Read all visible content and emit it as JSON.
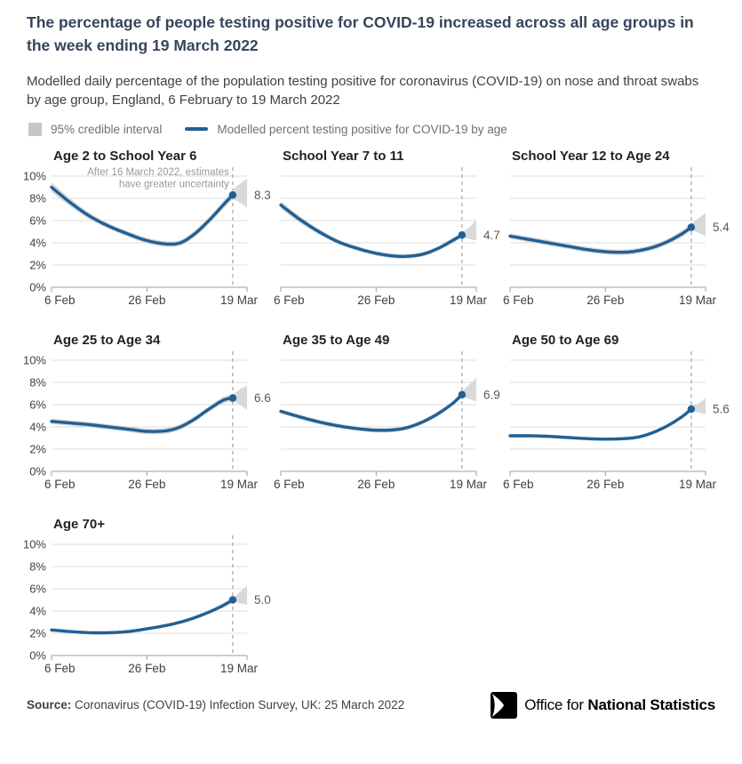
{
  "header": {
    "title": "The percentage of people testing positive for COVID-19 increased across all age groups in the week ending 19 March 2022",
    "subtitle": "Modelled daily percentage of the population testing positive for coronavirus (COVID-19) on nose and throat swabs by age group, England, 6 February to 19 March 2022"
  },
  "legend": {
    "interval_label": "95% credible interval",
    "line_label": "Modelled percent testing positive for COVID-19 by age"
  },
  "colors": {
    "line": "#206095",
    "band": "#d9d9d9",
    "legend_swatch": "#c6c6c6",
    "grid": "#dcdcdc",
    "axis": "#9e9e9e",
    "dash": "#ababab",
    "tick_text": "#414042",
    "value_text": "#595959",
    "annotation_text": "#9a9a9a",
    "title_text": "#36455c"
  },
  "chart_data": {
    "type": "line",
    "x_max": 41,
    "dashed_day": 38,
    "x_ticks": [
      {
        "label": "6 Feb",
        "day": 0
      },
      {
        "label": "26 Feb",
        "day": 20
      },
      {
        "label": "19 Mar",
        "day": 41
      }
    ],
    "y_axis": {
      "min": 0,
      "max": 10,
      "step": 2,
      "suffix": "%"
    },
    "grid": true,
    "legend_position": "top",
    "annotation": {
      "lines": [
        "After 16 March 2022, estimates",
        "have greater uncertainty"
      ]
    },
    "charts": [
      {
        "title": "Age 2 to School Year 6",
        "value_label": "8.3",
        "show_y_labels": true,
        "show_annotation": true,
        "line": [
          [
            0,
            9.0
          ],
          [
            4,
            7.6
          ],
          [
            8,
            6.4
          ],
          [
            12,
            5.5
          ],
          [
            16,
            4.8
          ],
          [
            20,
            4.2
          ],
          [
            24,
            3.9
          ],
          [
            27,
            4.0
          ],
          [
            30,
            4.8
          ],
          [
            33,
            6.0
          ],
          [
            36,
            7.4
          ],
          [
            38,
            8.3
          ]
        ],
        "band": [
          [
            0,
            8.55,
            9.45
          ],
          [
            4,
            7.25,
            7.95
          ],
          [
            8,
            6.1,
            6.7
          ],
          [
            12,
            5.25,
            5.75
          ],
          [
            16,
            4.55,
            5.05
          ],
          [
            20,
            3.95,
            4.45
          ],
          [
            24,
            3.65,
            4.15
          ],
          [
            27,
            3.75,
            4.25
          ],
          [
            30,
            4.5,
            5.1
          ],
          [
            33,
            5.7,
            6.3
          ],
          [
            36,
            7.05,
            7.75
          ],
          [
            38,
            7.85,
            8.75
          ],
          [
            39.5,
            7.6,
            9.3
          ],
          [
            41,
            7.2,
            9.8
          ]
        ]
      },
      {
        "title": "School Year 7 to 11",
        "value_label": "4.7",
        "show_y_labels": false,
        "show_annotation": false,
        "line": [
          [
            0,
            7.4
          ],
          [
            4,
            6.1
          ],
          [
            8,
            5.0
          ],
          [
            12,
            4.1
          ],
          [
            16,
            3.5
          ],
          [
            20,
            3.05
          ],
          [
            24,
            2.8
          ],
          [
            27,
            2.8
          ],
          [
            30,
            3.0
          ],
          [
            33,
            3.5
          ],
          [
            36,
            4.2
          ],
          [
            38,
            4.7
          ]
        ],
        "band": [
          [
            0,
            7.05,
            7.75
          ],
          [
            4,
            5.8,
            6.4
          ],
          [
            8,
            4.75,
            5.25
          ],
          [
            12,
            3.9,
            4.3
          ],
          [
            16,
            3.3,
            3.7
          ],
          [
            20,
            2.85,
            3.25
          ],
          [
            24,
            2.6,
            3.0
          ],
          [
            27,
            2.6,
            3.0
          ],
          [
            30,
            2.8,
            3.2
          ],
          [
            33,
            3.3,
            3.7
          ],
          [
            36,
            3.95,
            4.45
          ],
          [
            38,
            4.45,
            4.95
          ],
          [
            39.5,
            4.35,
            5.4
          ],
          [
            41,
            4.2,
            6.1
          ]
        ]
      },
      {
        "title": "School Year 12 to Age 24",
        "value_label": "5.4",
        "show_y_labels": false,
        "show_annotation": false,
        "line": [
          [
            0,
            4.6
          ],
          [
            4,
            4.3
          ],
          [
            8,
            4.0
          ],
          [
            12,
            3.7
          ],
          [
            16,
            3.4
          ],
          [
            20,
            3.2
          ],
          [
            24,
            3.15
          ],
          [
            27,
            3.3
          ],
          [
            30,
            3.6
          ],
          [
            33,
            4.1
          ],
          [
            36,
            4.8
          ],
          [
            38,
            5.4
          ]
        ],
        "band": [
          [
            0,
            4.35,
            4.85
          ],
          [
            4,
            4.05,
            4.55
          ],
          [
            8,
            3.75,
            4.25
          ],
          [
            12,
            3.45,
            3.95
          ],
          [
            16,
            3.15,
            3.65
          ],
          [
            20,
            2.95,
            3.45
          ],
          [
            24,
            2.9,
            3.4
          ],
          [
            27,
            3.05,
            3.55
          ],
          [
            30,
            3.35,
            3.85
          ],
          [
            33,
            3.85,
            4.35
          ],
          [
            36,
            4.5,
            5.1
          ],
          [
            38,
            5.05,
            5.75
          ],
          [
            39.5,
            4.9,
            6.2
          ],
          [
            41,
            4.6,
            6.7
          ]
        ]
      },
      {
        "title": "Age 25 to Age 34",
        "value_label": "6.6",
        "show_y_labels": true,
        "show_annotation": false,
        "line": [
          [
            0,
            4.5
          ],
          [
            4,
            4.35
          ],
          [
            8,
            4.2
          ],
          [
            12,
            4.0
          ],
          [
            16,
            3.8
          ],
          [
            20,
            3.6
          ],
          [
            24,
            3.65
          ],
          [
            27,
            4.0
          ],
          [
            30,
            4.7
          ],
          [
            33,
            5.6
          ],
          [
            36,
            6.4
          ],
          [
            38,
            6.6
          ]
        ],
        "band": [
          [
            0,
            4.25,
            4.75
          ],
          [
            4,
            4.1,
            4.6
          ],
          [
            8,
            3.95,
            4.45
          ],
          [
            12,
            3.75,
            4.25
          ],
          [
            16,
            3.55,
            4.05
          ],
          [
            20,
            3.35,
            3.85
          ],
          [
            24,
            3.4,
            3.9
          ],
          [
            27,
            3.75,
            4.25
          ],
          [
            30,
            4.45,
            4.95
          ],
          [
            33,
            5.35,
            5.85
          ],
          [
            36,
            6.1,
            6.7
          ],
          [
            38,
            6.25,
            6.95
          ],
          [
            39.5,
            6.0,
            7.4
          ],
          [
            41,
            5.5,
            7.7
          ]
        ]
      },
      {
        "title": "Age 35 to Age 49",
        "value_label": "6.9",
        "show_y_labels": false,
        "show_annotation": false,
        "line": [
          [
            0,
            5.4
          ],
          [
            4,
            4.9
          ],
          [
            8,
            4.45
          ],
          [
            12,
            4.1
          ],
          [
            16,
            3.85
          ],
          [
            20,
            3.7
          ],
          [
            24,
            3.75
          ],
          [
            27,
            4.0
          ],
          [
            30,
            4.5
          ],
          [
            33,
            5.2
          ],
          [
            36,
            6.1
          ],
          [
            38,
            6.9
          ]
        ],
        "band": [
          [
            0,
            5.2,
            5.6
          ],
          [
            4,
            4.7,
            5.1
          ],
          [
            8,
            4.25,
            4.65
          ],
          [
            12,
            3.9,
            4.3
          ],
          [
            16,
            3.65,
            4.05
          ],
          [
            20,
            3.5,
            3.9
          ],
          [
            24,
            3.55,
            3.95
          ],
          [
            27,
            3.8,
            4.2
          ],
          [
            30,
            4.3,
            4.7
          ],
          [
            33,
            5.0,
            5.4
          ],
          [
            36,
            5.9,
            6.3
          ],
          [
            38,
            6.6,
            7.2
          ],
          [
            39.5,
            6.5,
            7.8
          ],
          [
            41,
            6.3,
            8.4
          ]
        ]
      },
      {
        "title": "Age 50 to Age 69",
        "value_label": "5.6",
        "show_y_labels": false,
        "show_annotation": false,
        "line": [
          [
            0,
            3.2
          ],
          [
            4,
            3.2
          ],
          [
            8,
            3.15
          ],
          [
            12,
            3.05
          ],
          [
            16,
            2.95
          ],
          [
            20,
            2.9
          ],
          [
            24,
            2.95
          ],
          [
            27,
            3.1
          ],
          [
            30,
            3.5
          ],
          [
            33,
            4.1
          ],
          [
            36,
            4.9
          ],
          [
            38,
            5.6
          ]
        ],
        "band": [
          [
            0,
            3.05,
            3.35
          ],
          [
            4,
            3.05,
            3.35
          ],
          [
            8,
            3.0,
            3.3
          ],
          [
            12,
            2.9,
            3.2
          ],
          [
            16,
            2.8,
            3.1
          ],
          [
            20,
            2.75,
            3.05
          ],
          [
            24,
            2.8,
            3.1
          ],
          [
            27,
            2.95,
            3.25
          ],
          [
            30,
            3.35,
            3.65
          ],
          [
            33,
            3.95,
            4.25
          ],
          [
            36,
            4.75,
            5.05
          ],
          [
            38,
            5.4,
            5.8
          ],
          [
            39.5,
            5.3,
            6.1
          ],
          [
            41,
            5.15,
            6.6
          ]
        ]
      },
      {
        "title": "Age 70+",
        "value_label": "5.0",
        "show_y_labels": true,
        "show_annotation": false,
        "line": [
          [
            0,
            2.3
          ],
          [
            4,
            2.15
          ],
          [
            8,
            2.05
          ],
          [
            12,
            2.05
          ],
          [
            16,
            2.15
          ],
          [
            20,
            2.4
          ],
          [
            24,
            2.7
          ],
          [
            27,
            3.0
          ],
          [
            30,
            3.4
          ],
          [
            33,
            3.9
          ],
          [
            36,
            4.5
          ],
          [
            38,
            5.0
          ]
        ],
        "band": [
          [
            0,
            2.15,
            2.45
          ],
          [
            4,
            2.0,
            2.3
          ],
          [
            8,
            1.9,
            2.2
          ],
          [
            12,
            1.9,
            2.2
          ],
          [
            16,
            2.0,
            2.3
          ],
          [
            20,
            2.25,
            2.55
          ],
          [
            24,
            2.55,
            2.85
          ],
          [
            27,
            2.85,
            3.15
          ],
          [
            30,
            3.25,
            3.55
          ],
          [
            33,
            3.75,
            4.05
          ],
          [
            36,
            4.3,
            4.7
          ],
          [
            38,
            4.8,
            5.2
          ],
          [
            39.5,
            4.7,
            5.7
          ],
          [
            41,
            4.55,
            6.3
          ]
        ]
      }
    ]
  },
  "footer": {
    "source_prefix": "Source:",
    "source_text": "Coronavirus (COVID-19) Infection Survey, UK: 25 March 2022",
    "logo_regular": "Office for ",
    "logo_bold": "National Statistics"
  }
}
